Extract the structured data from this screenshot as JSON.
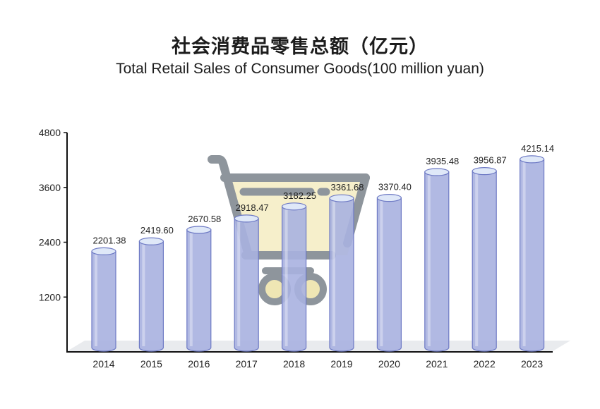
{
  "chart_data": {
    "type": "bar",
    "title": "社会消费品零售总额（亿元）",
    "subtitle": "Total Retail Sales of Consumer Goods(100 million yuan)",
    "categories": [
      "2014",
      "2015",
      "2016",
      "2017",
      "2018",
      "2019",
      "2020",
      "2021",
      "2022",
      "2023"
    ],
    "values": [
      2201.38,
      2419.6,
      2670.58,
      2918.47,
      3182.25,
      3361.68,
      3370.4,
      3935.48,
      3956.87,
      4215.14
    ],
    "value_labels": [
      "2201.38",
      "2419.60",
      "2670.58",
      "2918.47",
      "3182.25",
      "3361.68",
      "3370.40",
      "3935.48",
      "3956.87",
      "4215.14"
    ],
    "ylim": [
      0,
      4800
    ],
    "yticks": [
      1200,
      2400,
      3600,
      4800
    ],
    "ytick_labels": [
      "1200",
      "2400",
      "3600",
      "4800"
    ],
    "grid": false,
    "colors": {
      "bar_fill": "#a9b1e0",
      "bar_top": "#dfe8f8",
      "bar_edge": "#6d79c4",
      "cart_frame": "#8e959c",
      "cart_basket": "#f6efcb",
      "cart_wheel": "#efe6b4",
      "floor": "#e9ebee",
      "axis": "#111111"
    },
    "decoration": "shopping-cart-icon"
  }
}
